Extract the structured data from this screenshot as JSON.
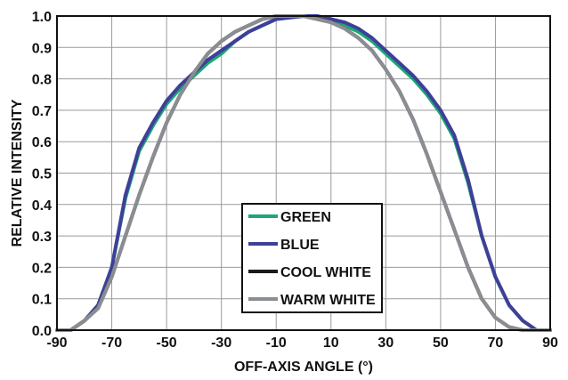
{
  "chart_data": {
    "type": "line",
    "xlabel": "OFF-AXIS ANGLE (°)",
    "ylabel": "RELATIVE INTENSITY",
    "xlim": [
      -90,
      90
    ],
    "ylim": [
      0,
      1.0
    ],
    "xticks": [
      "-90",
      "-70",
      "-50",
      "-30",
      "-10",
      "10",
      "30",
      "50",
      "70",
      "90"
    ],
    "yticks": [
      "0.0",
      "0.1",
      "0.2",
      "0.3",
      "0.4",
      "0.5",
      "0.6",
      "0.7",
      "0.8",
      "0.9",
      "1.0"
    ],
    "grid": true,
    "legend_position": "center-bottom",
    "x": [
      -90,
      -85,
      -80,
      -75,
      -70,
      -65,
      -60,
      -55,
      -50,
      -45,
      -40,
      -35,
      -30,
      -25,
      -20,
      -15,
      -10,
      -5,
      0,
      5,
      10,
      15,
      20,
      25,
      30,
      35,
      40,
      45,
      50,
      55,
      60,
      65,
      70,
      75,
      80,
      85,
      90
    ],
    "series": [
      {
        "name": "GREEN",
        "color": "#1aa874",
        "values": [
          0.0,
          0.0,
          0.03,
          0.08,
          0.2,
          0.42,
          0.57,
          0.65,
          0.72,
          0.77,
          0.81,
          0.85,
          0.88,
          0.92,
          0.95,
          0.97,
          0.99,
          0.995,
          1.0,
          0.995,
          0.99,
          0.97,
          0.95,
          0.92,
          0.88,
          0.84,
          0.8,
          0.75,
          0.69,
          0.61,
          0.47,
          0.3,
          0.17,
          0.08,
          0.03,
          0.0,
          0.0
        ]
      },
      {
        "name": "BLUE",
        "color": "#3f3f99",
        "values": [
          0.0,
          0.0,
          0.03,
          0.08,
          0.2,
          0.43,
          0.58,
          0.66,
          0.73,
          0.78,
          0.82,
          0.86,
          0.89,
          0.92,
          0.95,
          0.97,
          0.99,
          0.995,
          1.0,
          1.0,
          0.99,
          0.98,
          0.96,
          0.93,
          0.89,
          0.85,
          0.81,
          0.76,
          0.7,
          0.62,
          0.48,
          0.3,
          0.17,
          0.08,
          0.03,
          0.0,
          0.0
        ]
      },
      {
        "name": "COOL WHITE",
        "color": "#1a1a1a",
        "values": [
          0.0,
          0.0,
          0.03,
          0.07,
          0.17,
          0.3,
          0.43,
          0.55,
          0.66,
          0.75,
          0.82,
          0.88,
          0.92,
          0.95,
          0.97,
          0.99,
          1.0,
          1.0,
          1.0,
          0.99,
          0.98,
          0.96,
          0.93,
          0.89,
          0.83,
          0.76,
          0.67,
          0.56,
          0.44,
          0.32,
          0.2,
          0.1,
          0.04,
          0.01,
          0.0,
          0.0,
          0.0
        ]
      },
      {
        "name": "WARM WHITE",
        "color": "#8a8d91",
        "values": [
          0.0,
          0.0,
          0.03,
          0.07,
          0.17,
          0.3,
          0.43,
          0.55,
          0.66,
          0.75,
          0.82,
          0.88,
          0.92,
          0.95,
          0.97,
          0.99,
          1.0,
          1.0,
          1.0,
          0.99,
          0.98,
          0.96,
          0.93,
          0.89,
          0.83,
          0.76,
          0.67,
          0.56,
          0.44,
          0.32,
          0.2,
          0.1,
          0.04,
          0.01,
          0.0,
          0.0,
          0.0
        ]
      }
    ]
  }
}
